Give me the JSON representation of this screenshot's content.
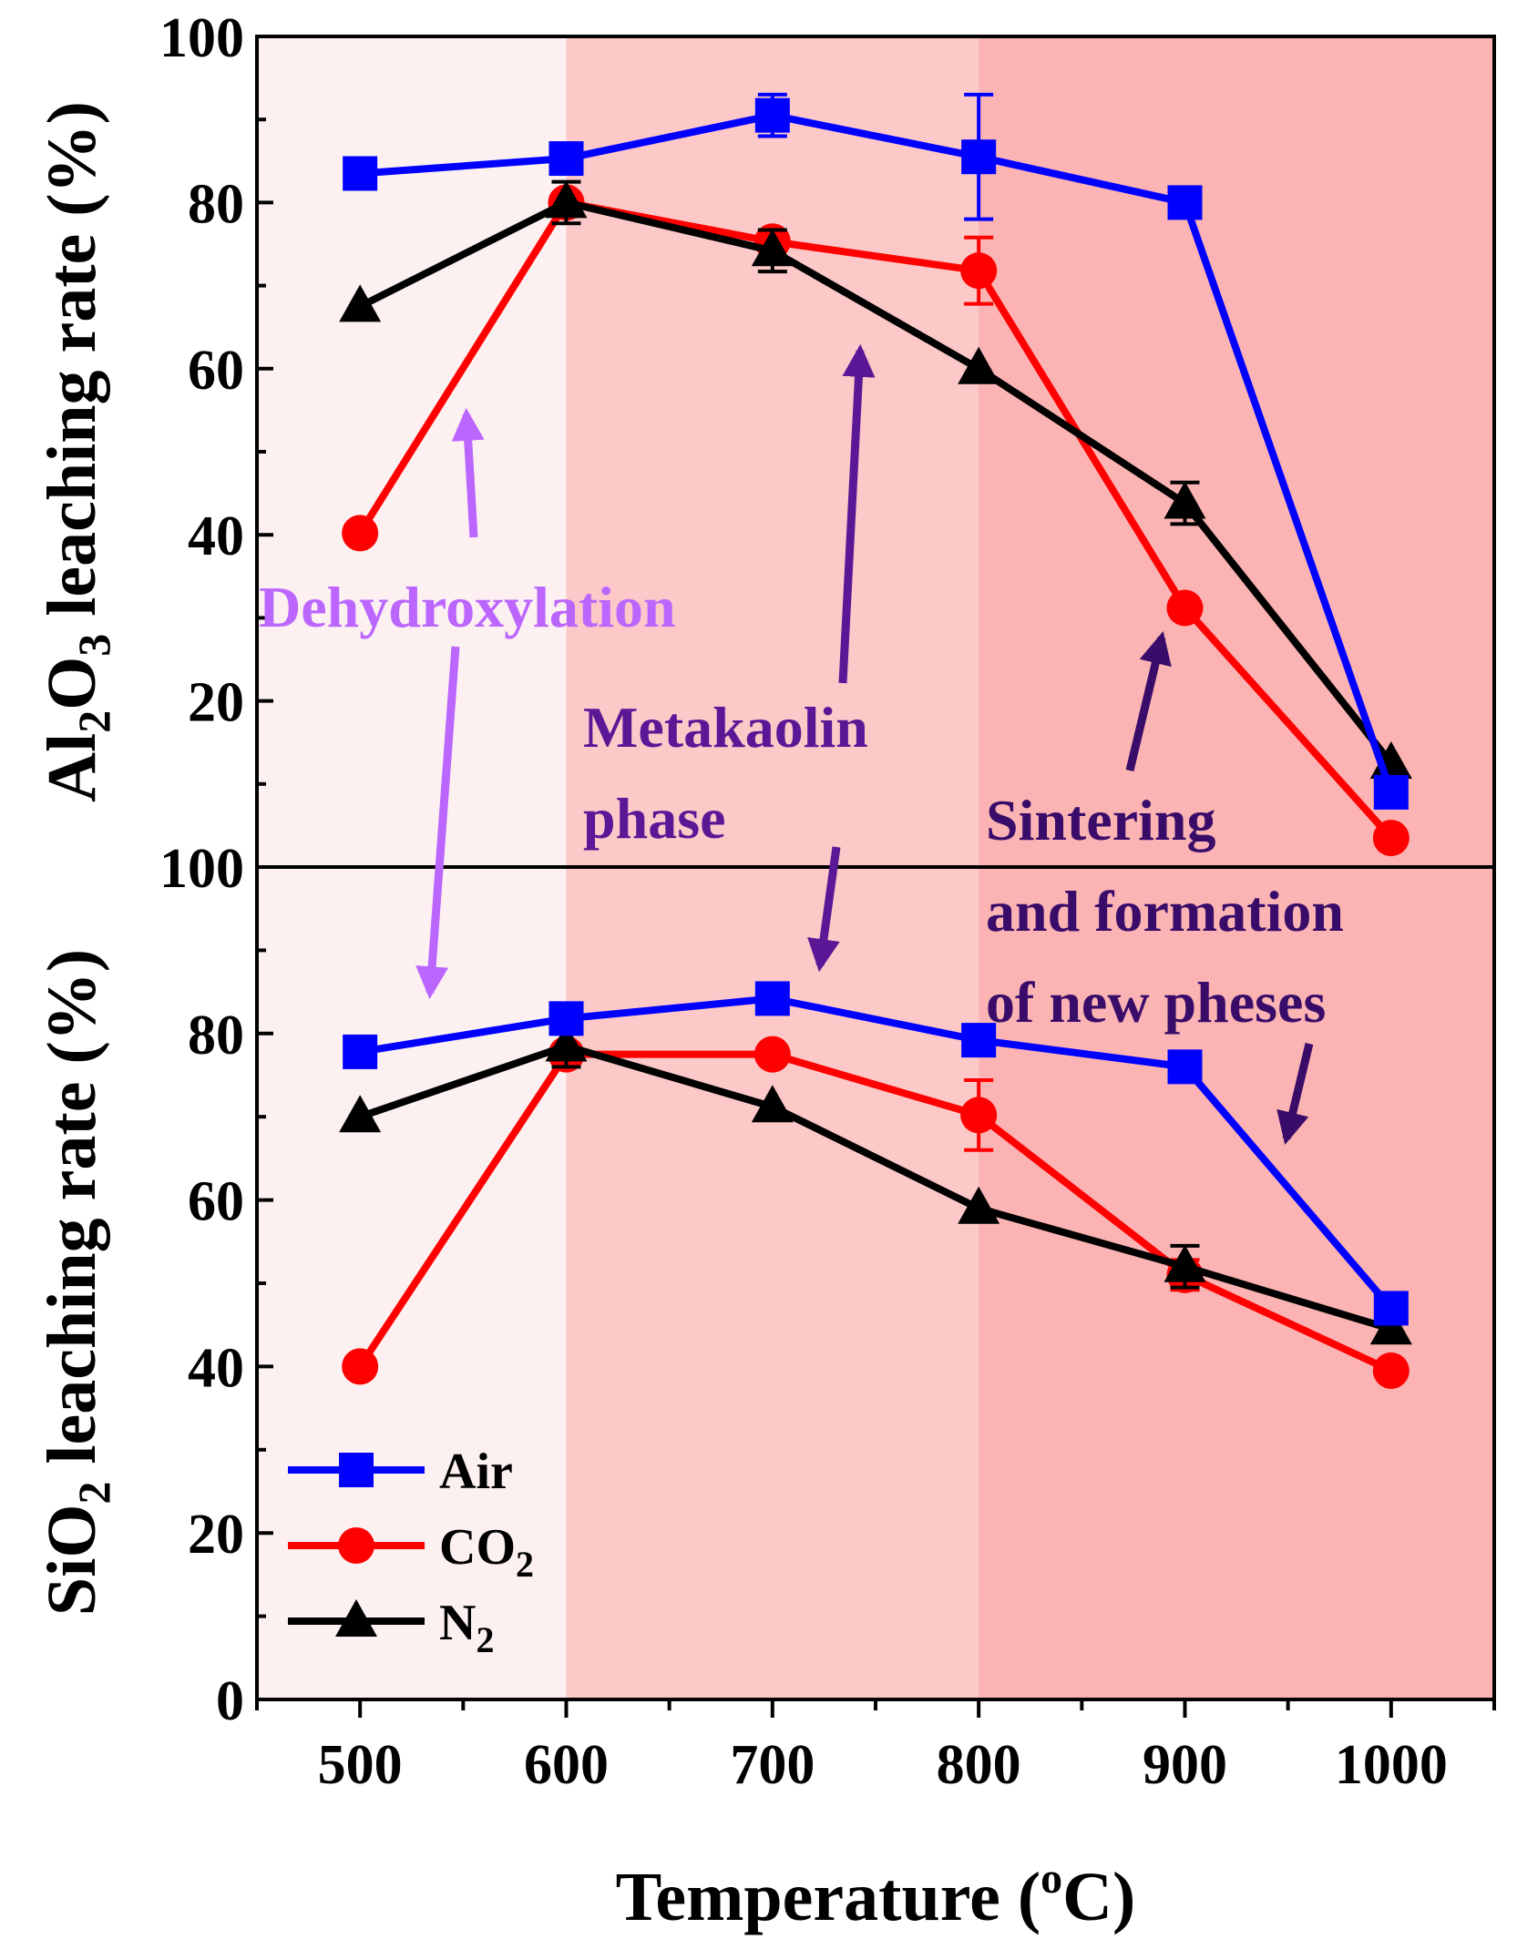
{
  "chart_data": {
    "type": "line",
    "xlabel": {
      "main": "Temperature (",
      "sup": "o",
      "tail": "C)"
    },
    "x_ticks": [
      500,
      600,
      700,
      800,
      900,
      1000
    ],
    "xlim": [
      450,
      1050
    ],
    "x": [
      500,
      600,
      700,
      800,
      900,
      1000
    ],
    "legend_position": "bottom-left",
    "regions": [
      {
        "x": [
          450,
          600
        ],
        "color": "#fdf0f0"
      },
      {
        "x": [
          600,
          800
        ],
        "color": "#fcc8c8"
      },
      {
        "x": [
          800,
          1050
        ],
        "color": "#fbb3b3"
      }
    ],
    "panels": [
      {
        "name": "top",
        "ylabel": {
          "a": "Al",
          "s1": "2",
          "b": "O",
          "s2": "3",
          "c": " leaching rate (%)"
        },
        "ylim": [
          0,
          100
        ],
        "y_ticks": [
          20,
          40,
          60,
          80,
          100
        ],
        "series": [
          {
            "name": "Air",
            "color": "#0000ff",
            "marker": "square",
            "values": [
              83.5,
              85.3,
              90.5,
              85.5,
              80.0,
              9.0
            ],
            "errors": [
              0,
              0,
              2.5,
              7.5,
              0,
              0
            ]
          },
          {
            "name": "CO2",
            "color": "#ff0000",
            "marker": "circle",
            "values": [
              40.2,
              80.0,
              75.3,
              71.8,
              31.2,
              3.5
            ],
            "errors": [
              0,
              0,
              0,
              4.0,
              0,
              0
            ]
          },
          {
            "name": "N2",
            "color": "#000000",
            "marker": "triangle",
            "values": [
              67.5,
              80.0,
              74.2,
              60.0,
              43.8,
              12.5
            ],
            "errors": [
              0,
              2.5,
              2.5,
              0,
              2.5,
              0
            ]
          }
        ]
      },
      {
        "name": "bottom",
        "ylabel": {
          "a": "SiO",
          "s1": "2",
          "b": " leaching rate (%)"
        },
        "ylim": [
          0,
          100
        ],
        "y_ticks": [
          0,
          20,
          40,
          60,
          80,
          100
        ],
        "series": [
          {
            "name": "Air",
            "color": "#0000ff",
            "marker": "square",
            "values": [
              77.8,
              81.8,
              84.2,
              79.2,
              76.0,
              47.0
            ],
            "errors": [
              0,
              0,
              0,
              0,
              0,
              0
            ]
          },
          {
            "name": "CO2",
            "color": "#ff0000",
            "marker": "circle",
            "values": [
              40.0,
              77.5,
              77.5,
              70.2,
              51.0,
              39.5
            ],
            "errors": [
              0,
              0,
              0,
              4.2,
              1.8,
              0
            ]
          },
          {
            "name": "N2",
            "color": "#000000",
            "marker": "triangle",
            "values": [
              70.0,
              78.5,
              71.2,
              59.0,
              52.0,
              44.5
            ],
            "errors": [
              0,
              2.5,
              0,
              0,
              2.5,
              1.5
            ]
          }
        ]
      }
    ],
    "legend": [
      {
        "label": "Air",
        "sub": "",
        "color": "#0000ff",
        "marker": "square"
      },
      {
        "label": "CO",
        "sub": "2",
        "color": "#ff0000",
        "marker": "circle"
      },
      {
        "label": "N",
        "sub": "2",
        "color": "#000000",
        "marker": "triangle"
      }
    ],
    "annotations": [
      {
        "name": "dehydroxylation",
        "lines": [
          "Dehydroxylation"
        ],
        "color": "#bb66ff"
      },
      {
        "name": "metakaolin",
        "lines": [
          "Metakaolin",
          "phase"
        ],
        "color": "#5a1896"
      },
      {
        "name": "sintering",
        "lines": [
          "Sintering",
          "and formation",
          "of new pheses"
        ],
        "color": "#3a0c6a"
      }
    ]
  }
}
